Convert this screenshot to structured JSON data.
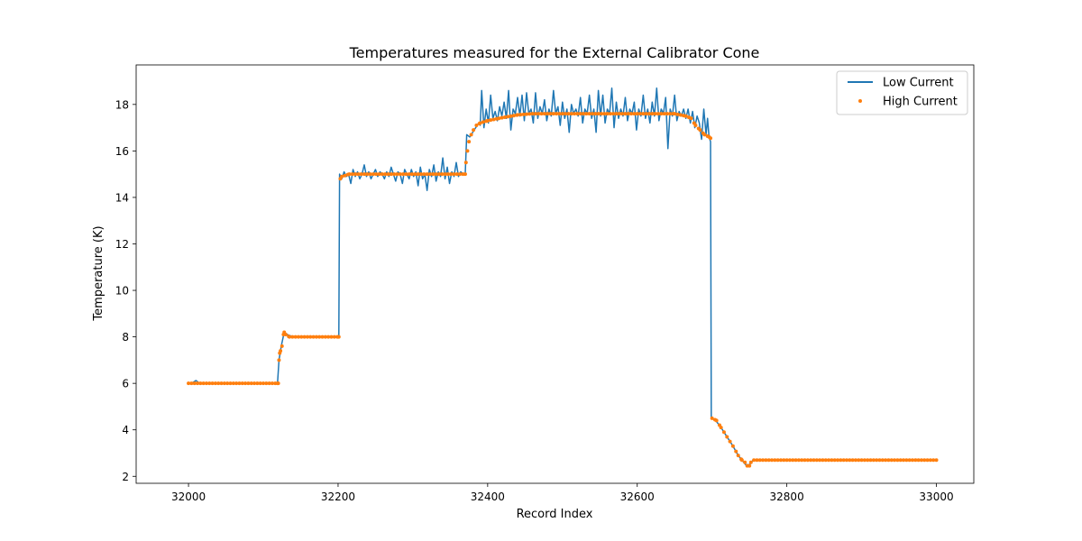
{
  "chart_data": {
    "type": "line",
    "title": "Temperatures measured for the External Calibrator Cone",
    "xlabel": "Record Index",
    "ylabel": "Temperature (K)",
    "xlim": [
      31930,
      33050
    ],
    "ylim": [
      1.7,
      19.7
    ],
    "xticks": [
      32000,
      32200,
      32400,
      32600,
      32800,
      33000
    ],
    "yticks": [
      2,
      4,
      6,
      8,
      10,
      12,
      14,
      16,
      18
    ],
    "legend_position": "top-right",
    "series": [
      {
        "name": "Low Current",
        "style": "line",
        "color": "#1f77b4",
        "points": [
          [
            32000,
            6.0
          ],
          [
            32005,
            6.02
          ],
          [
            32010,
            6.12
          ],
          [
            32015,
            6.0
          ],
          [
            32060,
            6.0
          ],
          [
            32119,
            6.0
          ],
          [
            32121,
            7.0
          ],
          [
            32124,
            7.6
          ],
          [
            32128,
            8.2
          ],
          [
            32132,
            8.1
          ],
          [
            32140,
            8.0
          ],
          [
            32200,
            8.0
          ],
          [
            32201,
            8.0
          ],
          [
            32202,
            15.0
          ],
          [
            32205,
            14.8
          ],
          [
            32208,
            15.1
          ],
          [
            32211,
            14.9
          ],
          [
            32214,
            15.0
          ],
          [
            32217,
            14.6
          ],
          [
            32220,
            15.2
          ],
          [
            32223,
            14.9
          ],
          [
            32226,
            15.1
          ],
          [
            32229,
            14.8
          ],
          [
            32232,
            15.0
          ],
          [
            32235,
            15.4
          ],
          [
            32238,
            14.9
          ],
          [
            32241,
            15.1
          ],
          [
            32244,
            14.8
          ],
          [
            32247,
            15.0
          ],
          [
            32250,
            15.2
          ],
          [
            32253,
            14.9
          ],
          [
            32256,
            15.1
          ],
          [
            32259,
            15.0
          ],
          [
            32262,
            14.8
          ],
          [
            32265,
            15.1
          ],
          [
            32268,
            14.9
          ],
          [
            32271,
            15.3
          ],
          [
            32274,
            15.0
          ],
          [
            32277,
            14.7
          ],
          [
            32280,
            15.1
          ],
          [
            32283,
            15.0
          ],
          [
            32286,
            14.6
          ],
          [
            32289,
            15.2
          ],
          [
            32292,
            15.0
          ],
          [
            32295,
            14.8
          ],
          [
            32298,
            15.2
          ],
          [
            32301,
            14.9
          ],
          [
            32304,
            15.1
          ],
          [
            32307,
            14.5
          ],
          [
            32310,
            15.3
          ],
          [
            32313,
            14.8
          ],
          [
            32316,
            15.0
          ],
          [
            32319,
            14.3
          ],
          [
            32322,
            15.2
          ],
          [
            32325,
            14.9
          ],
          [
            32328,
            15.4
          ],
          [
            32331,
            14.7
          ],
          [
            32334,
            15.1
          ],
          [
            32337,
            14.9
          ],
          [
            32340,
            15.7
          ],
          [
            32343,
            14.8
          ],
          [
            32346,
            15.3
          ],
          [
            32349,
            14.6
          ],
          [
            32352,
            15.1
          ],
          [
            32355,
            14.9
          ],
          [
            32358,
            15.5
          ],
          [
            32361,
            14.9
          ],
          [
            32364,
            15.1
          ],
          [
            32367,
            15.0
          ],
          [
            32370,
            15.0
          ],
          [
            32372,
            16.7
          ],
          [
            32376,
            16.6
          ],
          [
            32380,
            16.8
          ],
          [
            32384,
            17.0
          ],
          [
            32388,
            17.2
          ],
          [
            32390,
            17.1
          ],
          [
            32392,
            18.6
          ],
          [
            32395,
            17.0
          ],
          [
            32398,
            17.8
          ],
          [
            32401,
            17.2
          ],
          [
            32404,
            18.4
          ],
          [
            32407,
            17.4
          ],
          [
            32410,
            17.7
          ],
          [
            32413,
            17.3
          ],
          [
            32416,
            17.9
          ],
          [
            32419,
            17.5
          ],
          [
            32422,
            18.1
          ],
          [
            32425,
            17.4
          ],
          [
            32428,
            18.6
          ],
          [
            32431,
            16.9
          ],
          [
            32434,
            17.8
          ],
          [
            32437,
            17.6
          ],
          [
            32440,
            18.3
          ],
          [
            32443,
            17.5
          ],
          [
            32446,
            18.4
          ],
          [
            32449,
            17.3
          ],
          [
            32452,
            18.5
          ],
          [
            32455,
            17.6
          ],
          [
            32458,
            17.8
          ],
          [
            32461,
            17.2
          ],
          [
            32464,
            18.5
          ],
          [
            32467,
            17.4
          ],
          [
            32470,
            17.9
          ],
          [
            32473,
            17.6
          ],
          [
            32476,
            18.2
          ],
          [
            32479,
            17.3
          ],
          [
            32482,
            17.8
          ],
          [
            32485,
            17.5
          ],
          [
            32488,
            18.6
          ],
          [
            32491,
            17.6
          ],
          [
            32494,
            17.9
          ],
          [
            32497,
            17.1
          ],
          [
            32500,
            18.1
          ],
          [
            32503,
            17.4
          ],
          [
            32506,
            17.8
          ],
          [
            32509,
            16.8
          ],
          [
            32512,
            18.0
          ],
          [
            32515,
            17.6
          ],
          [
            32518,
            17.8
          ],
          [
            32521,
            17.5
          ],
          [
            32524,
            18.3
          ],
          [
            32527,
            17.2
          ],
          [
            32530,
            17.8
          ],
          [
            32533,
            17.6
          ],
          [
            32536,
            18.4
          ],
          [
            32539,
            17.4
          ],
          [
            32542,
            17.8
          ],
          [
            32545,
            16.8
          ],
          [
            32548,
            18.6
          ],
          [
            32551,
            17.5
          ],
          [
            32554,
            18.4
          ],
          [
            32557,
            17.2
          ],
          [
            32560,
            17.8
          ],
          [
            32563,
            17.6
          ],
          [
            32566,
            18.7
          ],
          [
            32569,
            17.0
          ],
          [
            32572,
            18.1
          ],
          [
            32575,
            17.4
          ],
          [
            32578,
            17.8
          ],
          [
            32581,
            17.5
          ],
          [
            32584,
            18.3
          ],
          [
            32587,
            17.3
          ],
          [
            32590,
            17.8
          ],
          [
            32593,
            17.6
          ],
          [
            32596,
            18.1
          ],
          [
            32599,
            16.9
          ],
          [
            32602,
            17.8
          ],
          [
            32605,
            17.5
          ],
          [
            32608,
            18.4
          ],
          [
            32611,
            17.4
          ],
          [
            32614,
            17.8
          ],
          [
            32617,
            17.2
          ],
          [
            32620,
            18.1
          ],
          [
            32623,
            17.5
          ],
          [
            32626,
            18.7
          ],
          [
            32629,
            17.3
          ],
          [
            32632,
            17.8
          ],
          [
            32635,
            17.6
          ],
          [
            32638,
            18.3
          ],
          [
            32641,
            16.1
          ],
          [
            32644,
            17.8
          ],
          [
            32647,
            17.5
          ],
          [
            32650,
            18.4
          ],
          [
            32653,
            17.3
          ],
          [
            32656,
            17.7
          ],
          [
            32659,
            17.5
          ],
          [
            32662,
            17.8
          ],
          [
            32665,
            17.4
          ],
          [
            32668,
            17.8
          ],
          [
            32671,
            17.2
          ],
          [
            32674,
            17.7
          ],
          [
            32677,
            17.0
          ],
          [
            32680,
            17.5
          ],
          [
            32683,
            17.2
          ],
          [
            32686,
            16.5
          ],
          [
            32689,
            17.8
          ],
          [
            32692,
            16.7
          ],
          [
            32694,
            17.4
          ],
          [
            32696,
            16.6
          ],
          [
            32698,
            16.4
          ],
          [
            32699,
            4.5
          ],
          [
            32705,
            4.4
          ],
          [
            32712,
            4.1
          ],
          [
            32720,
            3.7
          ],
          [
            32728,
            3.3
          ],
          [
            32735,
            2.9
          ],
          [
            32740,
            2.7
          ],
          [
            32745,
            2.5
          ],
          [
            32750,
            2.5
          ],
          [
            32755,
            2.7
          ],
          [
            32800,
            2.7
          ],
          [
            33000,
            2.7
          ]
        ]
      },
      {
        "name": "High Current",
        "style": "scatter",
        "color": "#ff7f0e",
        "points": [
          [
            32000,
            6.0
          ],
          [
            32119,
            6.0
          ],
          [
            32120,
            6.0
          ],
          [
            32121,
            7.0
          ],
          [
            32122,
            7.3
          ],
          [
            32123,
            7.4
          ],
          [
            32125,
            7.6
          ],
          [
            32127,
            8.1
          ],
          [
            32128,
            8.2
          ],
          [
            32130,
            8.1
          ],
          [
            32135,
            8.0
          ],
          [
            32200,
            8.0
          ],
          [
            32201,
            8.0
          ],
          [
            32203,
            14.8
          ],
          [
            32205,
            14.9
          ],
          [
            32215,
            15.0
          ],
          [
            32370,
            15.0
          ],
          [
            32371,
            15.5
          ],
          [
            32373,
            16.0
          ],
          [
            32375,
            16.4
          ],
          [
            32378,
            16.7
          ],
          [
            32381,
            16.9
          ],
          [
            32385,
            17.1
          ],
          [
            32390,
            17.2
          ],
          [
            32400,
            17.3
          ],
          [
            32415,
            17.4
          ],
          [
            32440,
            17.55
          ],
          [
            32460,
            17.6
          ],
          [
            32500,
            17.6
          ],
          [
            32600,
            17.6
          ],
          [
            32650,
            17.6
          ],
          [
            32665,
            17.5
          ],
          [
            32672,
            17.4
          ],
          [
            32678,
            17.1
          ],
          [
            32684,
            16.9
          ],
          [
            32690,
            16.7
          ],
          [
            32696,
            16.6
          ],
          [
            32698,
            16.55
          ],
          [
            32700,
            4.5
          ],
          [
            32706,
            4.4
          ],
          [
            32712,
            4.1
          ],
          [
            32720,
            3.7
          ],
          [
            32728,
            3.3
          ],
          [
            32735,
            2.9
          ],
          [
            32740,
            2.7
          ],
          [
            32744,
            2.6
          ],
          [
            32747,
            2.45
          ],
          [
            32750,
            2.45
          ],
          [
            32752,
            2.6
          ],
          [
            32756,
            2.7
          ],
          [
            32800,
            2.7
          ],
          [
            33000,
            2.7
          ]
        ]
      }
    ]
  }
}
